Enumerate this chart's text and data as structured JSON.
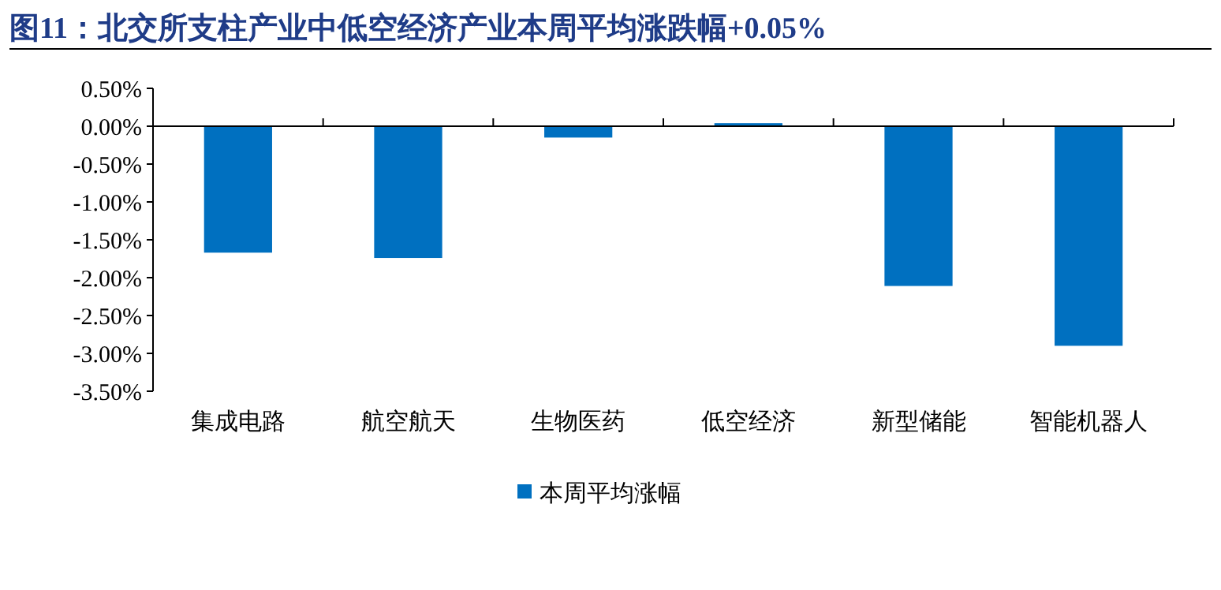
{
  "chart_data": {
    "type": "bar",
    "title": "图11：北交所支柱产业中低空经济产业本周平均涨跌幅+0.05%",
    "categories": [
      "集成电路",
      "航空航天",
      "生物医药",
      "低空经济",
      "新型储能",
      "智能机器人"
    ],
    "series": [
      {
        "name": "本周平均涨幅",
        "color": "#0070c0",
        "values": [
          -1.67,
          -1.74,
          -0.15,
          0.04,
          -2.11,
          -2.9
        ]
      }
    ],
    "ylim": [
      -3.5,
      0.5
    ],
    "yticks": [
      {
        "value": 0.5,
        "label": "0.50%"
      },
      {
        "value": 0,
        "label": "0.00%"
      },
      {
        "value": -0.5,
        "label": "-0.50%"
      },
      {
        "value": -1,
        "label": "-1.00%"
      },
      {
        "value": -1.5,
        "label": "-1.50%"
      },
      {
        "value": -2,
        "label": "-2.00%"
      },
      {
        "value": -2.5,
        "label": "-2.50%"
      },
      {
        "value": -3,
        "label": "-3.00%"
      },
      {
        "value": -3.5,
        "label": "-3.50%"
      }
    ],
    "legend": "bottom"
  }
}
